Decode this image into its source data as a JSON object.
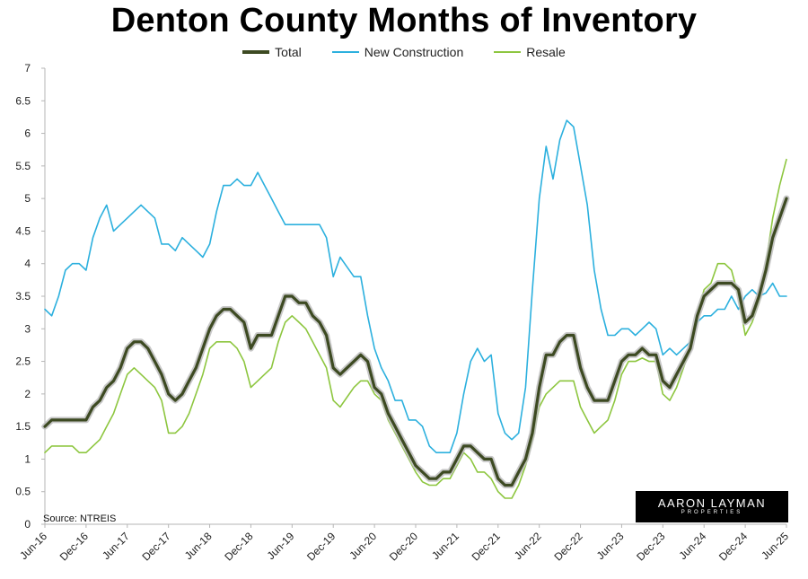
{
  "chart_data": {
    "type": "line",
    "title": "Denton County Months of Inventory",
    "xlabel": "",
    "ylabel": "",
    "ylim": [
      0,
      7
    ],
    "yticks": [
      "0",
      "0.5",
      "1",
      "1.5",
      "2",
      "2.5",
      "3",
      "3.5",
      "4",
      "4.5",
      "5",
      "5.5",
      "6",
      "6.5",
      "7"
    ],
    "xticks": [
      "Jun-16",
      "Dec-16",
      "Jun-17",
      "Dec-17",
      "Jun-18",
      "Dec-18",
      "Jun-19",
      "Dec-19",
      "Jun-20",
      "Dec-20",
      "Jun-21",
      "Dec-21",
      "Jun-22",
      "Dec-22",
      "Jun-23",
      "Dec-23",
      "Jun-24",
      "Dec-24",
      "Jun-25"
    ],
    "x_start": "Jun-16",
    "x_end": "Jun-25",
    "grid": false,
    "legend": "top-center",
    "series": [
      {
        "name": "Total",
        "color": "#3d4a22",
        "values": [
          1.5,
          1.6,
          1.6,
          1.6,
          1.6,
          1.6,
          1.6,
          1.8,
          1.9,
          2.1,
          2.2,
          2.4,
          2.7,
          2.8,
          2.8,
          2.7,
          2.5,
          2.3,
          2.0,
          1.9,
          2.0,
          2.2,
          2.4,
          2.7,
          3.0,
          3.2,
          3.3,
          3.3,
          3.2,
          3.1,
          2.7,
          2.9,
          2.9,
          2.9,
          3.2,
          3.5,
          3.5,
          3.4,
          3.4,
          3.2,
          3.1,
          2.9,
          2.4,
          2.3,
          2.4,
          2.5,
          2.6,
          2.5,
          2.1,
          2.0,
          1.7,
          1.5,
          1.3,
          1.1,
          0.9,
          0.8,
          0.7,
          0.7,
          0.8,
          0.8,
          1.0,
          1.2,
          1.2,
          1.1,
          1.0,
          1.0,
          0.7,
          0.6,
          0.6,
          0.8,
          1.0,
          1.4,
          2.1,
          2.6,
          2.6,
          2.8,
          2.9,
          2.9,
          2.4,
          2.1,
          1.9,
          1.9,
          1.9,
          2.2,
          2.5,
          2.6,
          2.6,
          2.7,
          2.6,
          2.6,
          2.2,
          2.1,
          2.3,
          2.5,
          2.7,
          3.2,
          3.5,
          3.6,
          3.7,
          3.7,
          3.7,
          3.6,
          3.1,
          3.2,
          3.5,
          3.9,
          4.4,
          4.7,
          5.0
        ]
      },
      {
        "name": "New Construction",
        "color": "#2cb0de",
        "values": [
          3.3,
          3.2,
          3.5,
          3.9,
          4.0,
          4.0,
          3.9,
          4.4,
          4.7,
          4.9,
          4.5,
          4.6,
          4.7,
          4.8,
          4.9,
          4.8,
          4.7,
          4.3,
          4.3,
          4.2,
          4.4,
          4.3,
          4.2,
          4.1,
          4.3,
          4.8,
          5.2,
          5.2,
          5.3,
          5.2,
          5.2,
          5.4,
          5.2,
          5.0,
          4.8,
          4.6,
          4.6,
          4.6,
          4.6,
          4.6,
          4.6,
          4.4,
          3.8,
          4.1,
          3.95,
          3.8,
          3.8,
          3.2,
          2.7,
          2.4,
          2.2,
          1.9,
          1.9,
          1.6,
          1.6,
          1.5,
          1.2,
          1.1,
          1.1,
          1.1,
          1.4,
          2.0,
          2.5,
          2.7,
          2.5,
          2.6,
          1.7,
          1.4,
          1.3,
          1.4,
          2.1,
          3.6,
          5.0,
          5.8,
          5.3,
          5.9,
          6.2,
          6.1,
          5.5,
          4.9,
          3.9,
          3.3,
          2.9,
          2.9,
          3.0,
          3.0,
          2.9,
          3.0,
          3.1,
          3.0,
          2.6,
          2.7,
          2.6,
          2.7,
          2.8,
          3.1,
          3.2,
          3.2,
          3.3,
          3.3,
          3.5,
          3.3,
          3.5,
          3.6,
          3.5,
          3.55,
          3.7,
          3.5,
          3.5
        ]
      },
      {
        "name": "Resale",
        "color": "#8dc63f",
        "values": [
          1.1,
          1.2,
          1.2,
          1.2,
          1.2,
          1.1,
          1.1,
          1.2,
          1.3,
          1.5,
          1.7,
          2.0,
          2.3,
          2.4,
          2.3,
          2.2,
          2.1,
          1.9,
          1.4,
          1.4,
          1.5,
          1.7,
          2.0,
          2.3,
          2.7,
          2.8,
          2.8,
          2.8,
          2.7,
          2.5,
          2.1,
          2.2,
          2.3,
          2.4,
          2.8,
          3.1,
          3.2,
          3.1,
          3.0,
          2.8,
          2.6,
          2.4,
          1.9,
          1.8,
          1.95,
          2.1,
          2.2,
          2.2,
          2.0,
          1.9,
          1.6,
          1.4,
          1.2,
          1.0,
          0.8,
          0.65,
          0.6,
          0.6,
          0.7,
          0.7,
          0.9,
          1.1,
          1.0,
          0.8,
          0.8,
          0.7,
          0.5,
          0.4,
          0.4,
          0.6,
          0.9,
          1.3,
          1.8,
          2.0,
          2.1,
          2.2,
          2.2,
          2.2,
          1.8,
          1.6,
          1.4,
          1.5,
          1.6,
          1.9,
          2.3,
          2.5,
          2.5,
          2.55,
          2.5,
          2.5,
          2.0,
          1.9,
          2.1,
          2.4,
          2.7,
          3.2,
          3.6,
          3.7,
          4.0,
          4.0,
          3.9,
          3.5,
          2.9,
          3.1,
          3.4,
          4.0,
          4.7,
          5.2,
          5.6
        ]
      }
    ]
  },
  "source_note": "Source: NTREIS",
  "logo": {
    "name": "AARON LAYMAN",
    "sub": "PROPERTIES"
  }
}
